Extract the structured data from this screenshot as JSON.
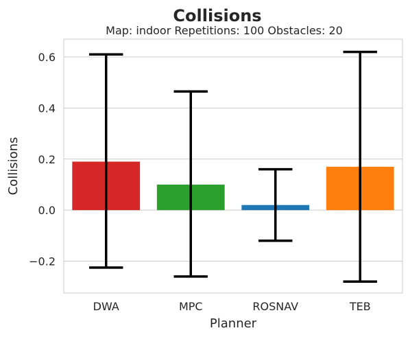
{
  "chart_data": {
    "type": "bar",
    "title": "Collisions",
    "subtitle": "Map: indoor Repetitions: 100 Obstacles: 20",
    "xlabel": "Planner",
    "ylabel": "Collisions",
    "categories": [
      "DWA",
      "MPC",
      "ROSNAV",
      "TEB"
    ],
    "values": [
      0.19,
      0.1,
      0.02,
      0.17
    ],
    "error_low": [
      -0.225,
      -0.26,
      -0.12,
      -0.28
    ],
    "error_high": [
      0.61,
      0.465,
      0.16,
      0.62
    ],
    "colors": [
      "#d62728",
      "#2ca02c",
      "#1f77b4",
      "#ff7f0e"
    ],
    "error_color": "#000000",
    "ylim": [
      -0.325,
      0.67
    ],
    "yticks": [
      -0.2,
      0.0,
      0.2,
      0.4,
      0.6
    ],
    "ytick_labels": [
      "−0.2",
      "0.0",
      "0.2",
      "0.4",
      "0.6"
    ],
    "grid": true,
    "legend": "none"
  }
}
